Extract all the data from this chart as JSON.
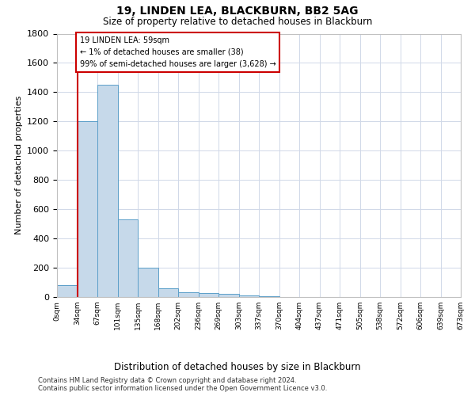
{
  "title": "19, LINDEN LEA, BLACKBURN, BB2 5AG",
  "subtitle": "Size of property relative to detached houses in Blackburn",
  "xlabel": "Distribution of detached houses by size in Blackburn",
  "ylabel": "Number of detached properties",
  "footnote1": "Contains HM Land Registry data © Crown copyright and database right 2024.",
  "footnote2": "Contains public sector information licensed under the Open Government Licence v3.0.",
  "bin_labels": [
    "0sqm",
    "34sqm",
    "67sqm",
    "101sqm",
    "135sqm",
    "168sqm",
    "202sqm",
    "236sqm",
    "269sqm",
    "303sqm",
    "337sqm",
    "370sqm",
    "404sqm",
    "437sqm",
    "471sqm",
    "505sqm",
    "538sqm",
    "572sqm",
    "606sqm",
    "639sqm",
    "673sqm"
  ],
  "bar_values": [
    80,
    1200,
    1450,
    530,
    200,
    60,
    35,
    28,
    20,
    10,
    5,
    0,
    0,
    0,
    0,
    0,
    0,
    0,
    0,
    0
  ],
  "bar_color": "#c6d9ea",
  "bar_edge_color": "#5b9fc9",
  "annotation_text": "19 LINDEN LEA: 59sqm\n← 1% of detached houses are smaller (38)\n99% of semi-detached houses are larger (3,628) →",
  "annotation_box_color": "#ffffff",
  "annotation_border_color": "#cc0000",
  "ylim": [
    0,
    1800
  ],
  "yticks": [
    0,
    200,
    400,
    600,
    800,
    1000,
    1200,
    1400,
    1600,
    1800
  ],
  "background_color": "#ffffff",
  "grid_color": "#d0d8e8"
}
